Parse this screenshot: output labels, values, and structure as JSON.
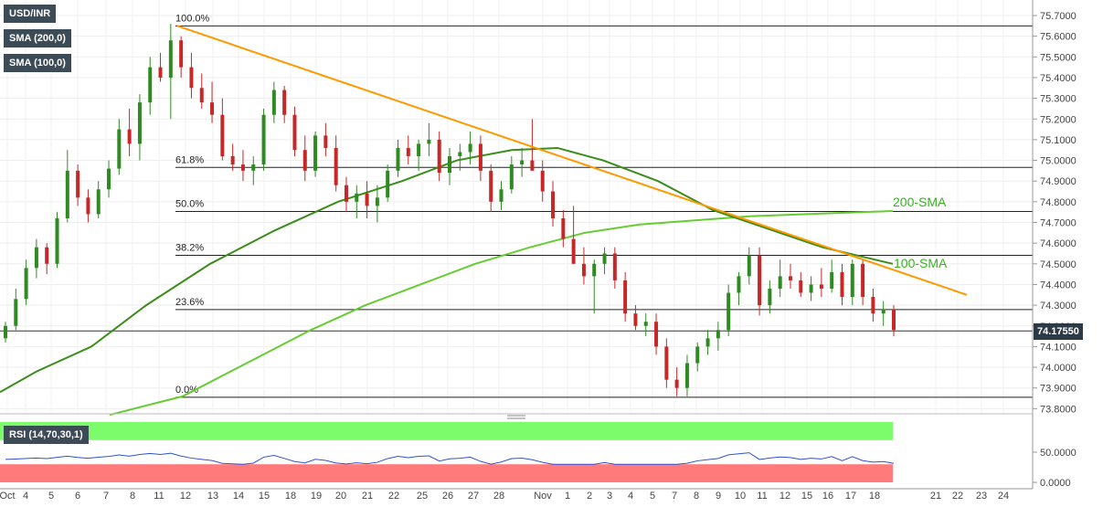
{
  "legend": {
    "symbol": "USD/INR",
    "sma200": "SMA (200,0)",
    "sma100": "SMA (100,0)",
    "rsi": "RSI (14,70,30,1)"
  },
  "price_tag": "74.17550",
  "chart_data": {
    "type": "candlestick",
    "y_ticks": [
      "75.7000",
      "75.6000",
      "75.5000",
      "75.4000",
      "75.3000",
      "75.2000",
      "75.1000",
      "75.0000",
      "74.9000",
      "74.8000",
      "74.7000",
      "74.6000",
      "74.5000",
      "74.4000",
      "74.3000",
      "74.2000",
      "74.1000",
      "74.0000",
      "73.9000",
      "73.8000"
    ],
    "ylim": [
      73.77,
      75.73
    ],
    "rsi_ticks": [
      "50.0000",
      "0.0000"
    ],
    "rsi_ylim": [
      0,
      100
    ],
    "rsi_bands": {
      "overbought": 70,
      "oversold": 30
    },
    "x_labels": [
      "Oct",
      "4",
      "5",
      "6",
      "7",
      "8",
      "11",
      "12",
      "13",
      "14",
      "15",
      "18",
      "19",
      "20",
      "21",
      "22",
      "25",
      "26",
      "27",
      "28",
      "Nov",
      "1",
      "2",
      "3",
      "4",
      "5",
      "7",
      "8",
      "9",
      "10",
      "11",
      "12",
      "15",
      "16",
      "17",
      "18",
      "21",
      "22",
      "23",
      "24"
    ],
    "fibonacci": [
      {
        "label": "100.0%",
        "value": 75.65
      },
      {
        "label": "61.8%",
        "value": 74.966
      },
      {
        "label": "50.0%",
        "value": 74.753
      },
      {
        "label": "38.2%",
        "value": 74.541
      },
      {
        "label": "23.6%",
        "value": 74.279
      },
      {
        "label": "0.0%",
        "value": 73.855
      }
    ],
    "last_price": 74.1755,
    "annotations": {
      "sma200": "200-SMA",
      "sma100": "100-SMA"
    },
    "trendline": {
      "start": {
        "date": "Oct 11",
        "value": 75.65
      },
      "end": {
        "date": "Nov 21",
        "value": 74.35
      }
    },
    "candles": [
      {
        "o": 74.14,
        "h": 74.22,
        "l": 74.12,
        "c": 74.2
      },
      {
        "o": 74.2,
        "h": 74.38,
        "l": 74.18,
        "c": 74.33
      },
      {
        "o": 74.33,
        "h": 74.52,
        "l": 74.3,
        "c": 74.48
      },
      {
        "o": 74.48,
        "h": 74.62,
        "l": 74.43,
        "c": 74.58
      },
      {
        "o": 74.58,
        "h": 74.6,
        "l": 74.45,
        "c": 74.5
      },
      {
        "o": 74.5,
        "h": 74.75,
        "l": 74.48,
        "c": 74.72
      },
      {
        "o": 74.72,
        "h": 75.05,
        "l": 74.7,
        "c": 74.95
      },
      {
        "o": 74.95,
        "h": 74.98,
        "l": 74.78,
        "c": 74.82
      },
      {
        "o": 74.82,
        "h": 74.86,
        "l": 74.7,
        "c": 74.74
      },
      {
        "o": 74.74,
        "h": 74.9,
        "l": 74.72,
        "c": 74.86
      },
      {
        "o": 74.86,
        "h": 75.0,
        "l": 74.82,
        "c": 74.96
      },
      {
        "o": 74.96,
        "h": 75.2,
        "l": 74.93,
        "c": 75.15
      },
      {
        "o": 75.15,
        "h": 75.25,
        "l": 75.02,
        "c": 75.08
      },
      {
        "o": 75.08,
        "h": 75.32,
        "l": 75.0,
        "c": 75.28
      },
      {
        "o": 75.28,
        "h": 75.5,
        "l": 75.22,
        "c": 75.45
      },
      {
        "o": 75.45,
        "h": 75.52,
        "l": 75.38,
        "c": 75.4
      },
      {
        "o": 75.4,
        "h": 75.66,
        "l": 75.2,
        "c": 75.58
      },
      {
        "o": 75.58,
        "h": 75.6,
        "l": 75.4,
        "c": 75.45
      },
      {
        "o": 75.45,
        "h": 75.52,
        "l": 75.3,
        "c": 75.35
      },
      {
        "o": 75.35,
        "h": 75.42,
        "l": 75.25,
        "c": 75.28
      },
      {
        "o": 75.28,
        "h": 75.38,
        "l": 75.18,
        "c": 75.22
      },
      {
        "o": 75.22,
        "h": 75.3,
        "l": 75.0,
        "c": 75.02
      },
      {
        "o": 75.02,
        "h": 75.08,
        "l": 74.95,
        "c": 74.98
      },
      {
        "o": 74.98,
        "h": 75.05,
        "l": 74.9,
        "c": 74.95
      },
      {
        "o": 74.95,
        "h": 75.02,
        "l": 74.88,
        "c": 74.98
      },
      {
        "o": 74.98,
        "h": 75.25,
        "l": 74.95,
        "c": 75.22
      },
      {
        "o": 75.22,
        "h": 75.38,
        "l": 75.18,
        "c": 75.34
      },
      {
        "o": 75.34,
        "h": 75.36,
        "l": 75.18,
        "c": 75.22
      },
      {
        "o": 75.22,
        "h": 75.26,
        "l": 75.02,
        "c": 75.05
      },
      {
        "o": 75.05,
        "h": 75.12,
        "l": 74.9,
        "c": 74.95
      },
      {
        "o": 74.95,
        "h": 75.14,
        "l": 74.92,
        "c": 75.12
      },
      {
        "o": 75.12,
        "h": 75.18,
        "l": 75.02,
        "c": 75.06
      },
      {
        "o": 75.06,
        "h": 75.12,
        "l": 74.85,
        "c": 74.88
      },
      {
        "o": 74.88,
        "h": 74.92,
        "l": 74.75,
        "c": 74.8
      },
      {
        "o": 74.8,
        "h": 74.88,
        "l": 74.72,
        "c": 74.84
      },
      {
        "o": 74.84,
        "h": 74.9,
        "l": 74.72,
        "c": 74.78
      },
      {
        "o": 74.78,
        "h": 74.88,
        "l": 74.7,
        "c": 74.82
      },
      {
        "o": 74.82,
        "h": 74.98,
        "l": 74.8,
        "c": 74.95
      },
      {
        "o": 74.95,
        "h": 75.1,
        "l": 74.92,
        "c": 75.06
      },
      {
        "o": 75.06,
        "h": 75.12,
        "l": 74.98,
        "c": 75.02
      },
      {
        "o": 75.02,
        "h": 75.1,
        "l": 74.95,
        "c": 75.08
      },
      {
        "o": 75.08,
        "h": 75.18,
        "l": 75.02,
        "c": 75.1
      },
      {
        "o": 75.1,
        "h": 75.14,
        "l": 74.9,
        "c": 74.94
      },
      {
        "o": 74.94,
        "h": 75.06,
        "l": 74.88,
        "c": 75.02
      },
      {
        "o": 75.02,
        "h": 75.08,
        "l": 74.95,
        "c": 75.04
      },
      {
        "o": 75.04,
        "h": 75.14,
        "l": 74.98,
        "c": 75.08
      },
      {
        "o": 75.08,
        "h": 75.12,
        "l": 74.9,
        "c": 74.95
      },
      {
        "o": 74.95,
        "h": 74.98,
        "l": 74.75,
        "c": 74.8
      },
      {
        "o": 74.8,
        "h": 74.9,
        "l": 74.76,
        "c": 74.86
      },
      {
        "o": 74.86,
        "h": 75.02,
        "l": 74.84,
        "c": 74.98
      },
      {
        "o": 74.98,
        "h": 75.06,
        "l": 74.92,
        "c": 75.0
      },
      {
        "o": 75.0,
        "h": 75.2,
        "l": 74.95,
        "c": 74.95
      },
      {
        "o": 74.95,
        "h": 75.0,
        "l": 74.8,
        "c": 74.85
      },
      {
        "o": 74.85,
        "h": 74.9,
        "l": 74.68,
        "c": 74.72
      },
      {
        "o": 74.72,
        "h": 74.76,
        "l": 74.58,
        "c": 74.62
      },
      {
        "o": 74.62,
        "h": 74.78,
        "l": 74.5,
        "c": 74.5
      },
      {
        "o": 74.5,
        "h": 74.58,
        "l": 74.4,
        "c": 74.44
      },
      {
        "o": 74.44,
        "h": 74.52,
        "l": 74.26,
        "c": 74.5
      },
      {
        "o": 74.5,
        "h": 74.58,
        "l": 74.45,
        "c": 74.55
      },
      {
        "o": 74.55,
        "h": 74.58,
        "l": 74.38,
        "c": 74.42
      },
      {
        "o": 74.42,
        "h": 74.46,
        "l": 74.22,
        "c": 74.26
      },
      {
        "o": 74.26,
        "h": 74.3,
        "l": 74.18,
        "c": 74.2
      },
      {
        "o": 74.2,
        "h": 74.26,
        "l": 74.15,
        "c": 74.22
      },
      {
        "o": 74.22,
        "h": 74.26,
        "l": 74.06,
        "c": 74.1
      },
      {
        "o": 74.1,
        "h": 74.14,
        "l": 73.9,
        "c": 73.94
      },
      {
        "o": 73.94,
        "h": 74.0,
        "l": 73.86,
        "c": 73.9
      },
      {
        "o": 73.9,
        "h": 74.06,
        "l": 73.86,
        "c": 74.02
      },
      {
        "o": 74.02,
        "h": 74.12,
        "l": 73.98,
        "c": 74.1
      },
      {
        "o": 74.1,
        "h": 74.18,
        "l": 74.06,
        "c": 74.14
      },
      {
        "o": 74.14,
        "h": 74.22,
        "l": 74.08,
        "c": 74.18
      },
      {
        "o": 74.18,
        "h": 74.4,
        "l": 74.15,
        "c": 74.36
      },
      {
        "o": 74.36,
        "h": 74.46,
        "l": 74.3,
        "c": 74.44
      },
      {
        "o": 74.44,
        "h": 74.58,
        "l": 74.4,
        "c": 74.54
      },
      {
        "o": 74.54,
        "h": 74.58,
        "l": 74.25,
        "c": 74.3
      },
      {
        "o": 74.3,
        "h": 74.42,
        "l": 74.26,
        "c": 74.38
      },
      {
        "o": 74.38,
        "h": 74.52,
        "l": 74.34,
        "c": 74.44
      },
      {
        "o": 74.44,
        "h": 74.5,
        "l": 74.38,
        "c": 74.42
      },
      {
        "o": 74.42,
        "h": 74.46,
        "l": 74.34,
        "c": 74.36
      },
      {
        "o": 74.36,
        "h": 74.44,
        "l": 74.32,
        "c": 74.4
      },
      {
        "o": 74.4,
        "h": 74.48,
        "l": 74.34,
        "c": 74.38
      },
      {
        "o": 74.38,
        "h": 74.52,
        "l": 74.36,
        "c": 74.46
      },
      {
        "o": 74.46,
        "h": 74.5,
        "l": 74.3,
        "c": 74.34
      },
      {
        "o": 74.34,
        "h": 74.52,
        "l": 74.3,
        "c": 74.5
      },
      {
        "o": 74.5,
        "h": 74.52,
        "l": 74.3,
        "c": 74.34
      },
      {
        "o": 74.34,
        "h": 74.38,
        "l": 74.22,
        "c": 74.26
      },
      {
        "o": 74.26,
        "h": 74.32,
        "l": 74.2,
        "c": 74.28
      },
      {
        "o": 74.28,
        "h": 74.3,
        "l": 74.15,
        "c": 74.18
      }
    ]
  }
}
